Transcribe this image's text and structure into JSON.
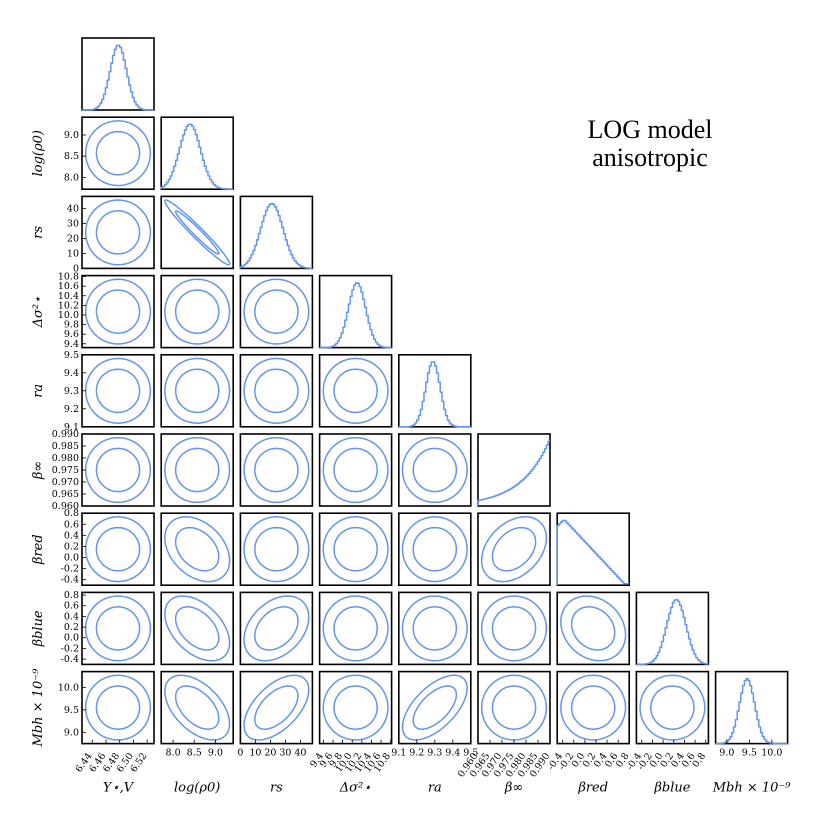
{
  "chart_data": {
    "type": "corner",
    "title_lines": [
      "LOG model",
      "anisotropic"
    ],
    "params": [
      {
        "label": "Υ⋆,V",
        "ticks": [
          "6.44",
          "6.46",
          "6.48",
          "6.50",
          "6.52"
        ],
        "range": [
          6.425,
          6.53
        ],
        "rot": -55
      },
      {
        "label": "log(ρ0)",
        "ticks": [
          "8.0",
          "8.5",
          "9.0"
        ],
        "range": [
          7.72,
          9.42
        ],
        "rot": 0
      },
      {
        "label": "rs",
        "ticks": [
          "0",
          "10",
          "20",
          "30",
          "40"
        ],
        "range": [
          0,
          48
        ],
        "rot": 0
      },
      {
        "label": "Δσ²⋆",
        "ticks": [
          "9.4",
          "9.6",
          "9.8",
          "10.0",
          "10.2",
          "10.4",
          "10.6",
          "10.8"
        ],
        "range": [
          9.32,
          10.82
        ],
        "rot": -55
      },
      {
        "label": "ra",
        "ticks": [
          "9.1",
          "9.2",
          "9.3",
          "9.4",
          "9.5"
        ],
        "range": [
          9.1,
          9.5
        ],
        "rot": 0
      },
      {
        "label": "β∞",
        "ticks": [
          "0.960",
          "0.965",
          "0.970",
          "0.975",
          "0.980",
          "0.985",
          "0.990"
        ],
        "range": [
          0.96,
          0.99
        ],
        "rot": -55
      },
      {
        "label": "βred",
        "ticks": [
          "-0.4",
          "-0.2",
          "0.0",
          "0.2",
          "0.4",
          "0.6",
          "0.8"
        ],
        "range": [
          -0.5,
          0.8
        ],
        "rot": -55
      },
      {
        "label": "βblue",
        "ticks": [
          "-0.4",
          "-0.2",
          "0.0",
          "0.2",
          "0.4",
          "0.6",
          "0.8"
        ],
        "range": [
          -0.5,
          0.85
        ],
        "rot": -55
      },
      {
        "label": "Mbh × 10⁻⁹",
        "ticks": [
          "9.0",
          "9.5",
          "10.0"
        ],
        "range": [
          8.75,
          10.35
        ],
        "rot": 0
      }
    ],
    "marginals": [
      {
        "mean": 6.478,
        "sd": 0.012,
        "shape": "gaussian"
      },
      {
        "mean": 8.4,
        "sd": 0.25,
        "shape": "gaussian"
      },
      {
        "mean": 21,
        "sd": 7.5,
        "shape": "gaussian"
      },
      {
        "mean": 10.1,
        "sd": 0.18,
        "shape": "gaussian"
      },
      {
        "mean": 9.29,
        "sd": 0.04,
        "shape": "gaussian"
      },
      {
        "mean": 0.99,
        "sd": 0.012,
        "shape": "rising"
      },
      {
        "mean": -0.38,
        "sd": 0.7,
        "shape": "decreasing"
      },
      {
        "mean": 0.25,
        "sd": 0.18,
        "shape": "gaussian"
      },
      {
        "mean": 9.45,
        "sd": 0.17,
        "shape": "gaussian"
      }
    ],
    "correlations": [
      [
        0,
        1,
        0.0
      ],
      [
        0,
        2,
        0.0
      ],
      [
        1,
        2,
        -0.97
      ],
      [
        0,
        3,
        0.0
      ],
      [
        1,
        3,
        0.0
      ],
      [
        2,
        3,
        0.0
      ],
      [
        0,
        4,
        0.0
      ],
      [
        1,
        4,
        0.0
      ],
      [
        2,
        4,
        0.0
      ],
      [
        3,
        4,
        0.0
      ],
      [
        6,
        8,
        0.0
      ],
      [
        1,
        8,
        -0.5
      ],
      [
        2,
        8,
        0.55
      ],
      [
        4,
        8,
        0.6
      ],
      [
        1,
        6,
        -0.35
      ],
      [
        1,
        7,
        -0.45
      ],
      [
        2,
        7,
        0.35
      ],
      [
        5,
        6,
        0.35
      ],
      [
        5,
        7,
        0.0
      ],
      [
        6,
        7,
        -0.2
      ]
    ],
    "contour_levels": [
      "1-sigma",
      "2-sigma"
    ],
    "line_color": "#6495ED"
  }
}
